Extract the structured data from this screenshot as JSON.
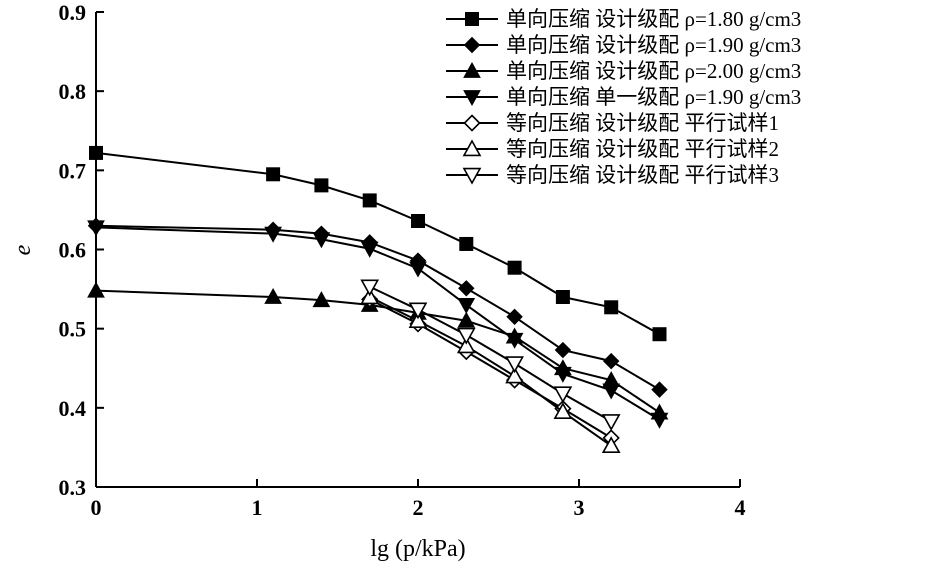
{
  "chart_data": {
    "type": "line",
    "title": "",
    "xlabel": "lg (p/kPa)",
    "ylabel": "e",
    "xlim": [
      0,
      4
    ],
    "ylim": [
      0.3,
      0.9
    ],
    "xticks": [
      0,
      1,
      2,
      3,
      4
    ],
    "xtick_labels": [
      "0",
      "1",
      "2",
      "3",
      "4"
    ],
    "yticks": [
      0.3,
      0.4,
      0.5,
      0.6,
      0.7,
      0.8,
      0.9
    ],
    "ytick_labels": [
      "0.3",
      "0.4",
      "0.5",
      "0.6",
      "0.7",
      "0.8",
      "0.9"
    ],
    "grid": false,
    "legend_position": "top-right",
    "series": [
      {
        "name": "单向压缩 设计级配 ρ=1.80 g/cm3",
        "marker": "square-filled",
        "x": [
          0,
          1.1,
          1.4,
          1.7,
          2.0,
          2.3,
          2.6,
          2.9,
          3.2,
          3.5
        ],
        "y": [
          0.722,
          0.695,
          0.681,
          0.662,
          0.636,
          0.607,
          0.577,
          0.54,
          0.527,
          0.493
        ]
      },
      {
        "name": "单向压缩 设计级配 ρ=1.90 g/cm3",
        "marker": "diamond-filled",
        "x": [
          0,
          1.1,
          1.4,
          1.7,
          2.0,
          2.3,
          2.6,
          2.9,
          3.2,
          3.5
        ],
        "y": [
          0.63,
          0.625,
          0.62,
          0.609,
          0.586,
          0.551,
          0.515,
          0.473,
          0.459,
          0.423
        ]
      },
      {
        "name": "单向压缩 设计级配 ρ=2.00 g/cm3",
        "marker": "triangle-up-filled",
        "x": [
          0,
          1.1,
          1.4,
          1.7,
          2.0,
          2.3,
          2.6,
          2.9,
          3.2,
          3.5
        ],
        "y": [
          0.548,
          0.54,
          0.536,
          0.53,
          0.52,
          0.51,
          0.49,
          0.45,
          0.435,
          0.394
        ]
      },
      {
        "name": "单向压缩 单一级配 ρ=1.90 g/cm3",
        "marker": "triangle-down-filled",
        "x": [
          0,
          1.1,
          1.4,
          1.7,
          2.0,
          2.3,
          2.6,
          2.9,
          3.2,
          3.5
        ],
        "y": [
          0.628,
          0.62,
          0.613,
          0.601,
          0.576,
          0.53,
          0.486,
          0.443,
          0.422,
          0.385
        ]
      },
      {
        "name": "等向压缩 设计级配 平行试样1",
        "marker": "diamond-open",
        "x": [
          1.7,
          2.0,
          2.3,
          2.6,
          2.9,
          3.2
        ],
        "y": [
          0.537,
          0.506,
          0.471,
          0.435,
          0.399,
          0.362
        ]
      },
      {
        "name": "等向压缩 设计级配 平行试样2",
        "marker": "triangle-up-open",
        "x": [
          1.7,
          2.0,
          2.3,
          2.6,
          2.9,
          3.2
        ],
        "y": [
          0.54,
          0.51,
          0.478,
          0.44,
          0.395,
          0.352
        ]
      },
      {
        "name": "等向压缩 设计级配 平行试样3",
        "marker": "triangle-down-open",
        "x": [
          1.7,
          2.0,
          2.3,
          2.6,
          2.9,
          3.2
        ],
        "y": [
          0.553,
          0.524,
          0.492,
          0.456,
          0.418,
          0.383
        ]
      }
    ]
  }
}
